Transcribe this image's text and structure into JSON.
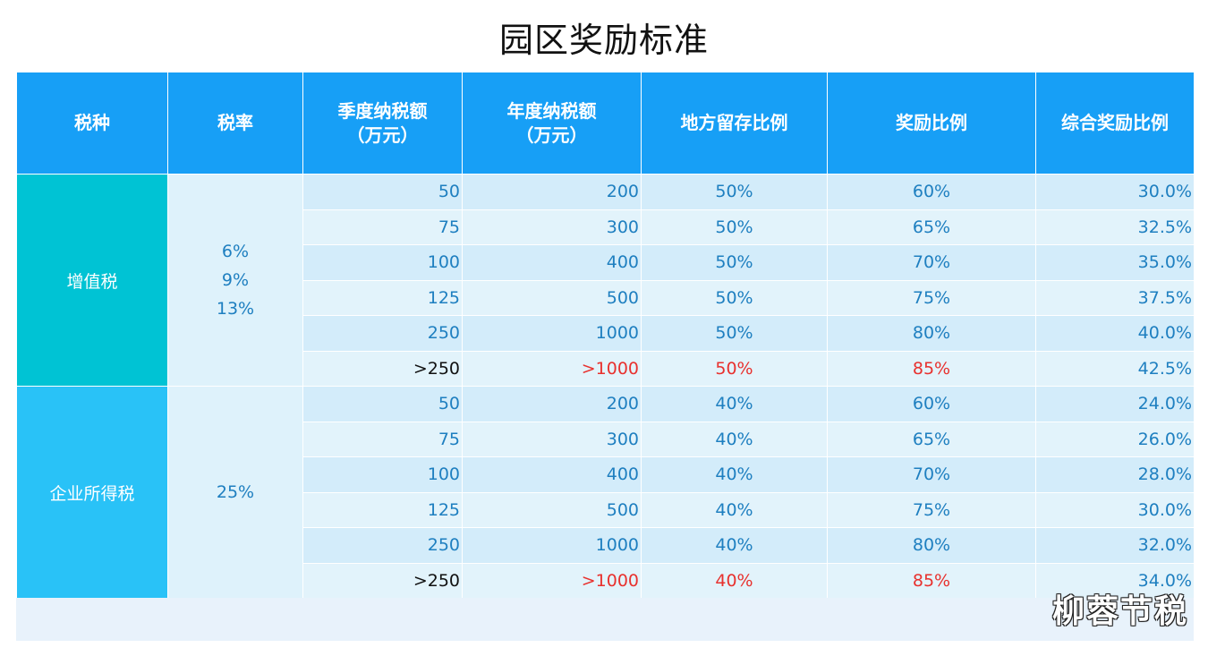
{
  "title": "园区奖励标准",
  "headers": [
    "税种",
    "税率",
    "季度纳税额\n（万元）",
    "年度纳税额\n（万元）",
    "地方留存比例",
    "奖励比例",
    "综合奖励比例"
  ],
  "groups": [
    {
      "type": "增值税",
      "rate": "6%\n9%\n13%",
      "rows": [
        {
          "q": "50",
          "y": "200",
          "local": "50%",
          "reward": "60%",
          "total": "30.0%"
        },
        {
          "q": "75",
          "y": "300",
          "local": "50%",
          "reward": "65%",
          "total": "32.5%"
        },
        {
          "q": "100",
          "y": "400",
          "local": "50%",
          "reward": "70%",
          "total": "35.0%"
        },
        {
          "q": "125",
          "y": "500",
          "local": "50%",
          "reward": "75%",
          "total": "37.5%"
        },
        {
          "q": "250",
          "y": "1000",
          "local": "50%",
          "reward": "80%",
          "total": "40.0%"
        },
        {
          "q": ">250",
          "y": ">1000",
          "local": "50%",
          "reward": "85%",
          "total": "42.5%"
        }
      ]
    },
    {
      "type": "企业所得税",
      "rate": "25%",
      "rows": [
        {
          "q": "50",
          "y": "200",
          "local": "40%",
          "reward": "60%",
          "total": "24.0%"
        },
        {
          "q": "75",
          "y": "300",
          "local": "40%",
          "reward": "65%",
          "total": "26.0%"
        },
        {
          "q": "100",
          "y": "400",
          "local": "40%",
          "reward": "70%",
          "total": "28.0%"
        },
        {
          "q": "125",
          "y": "500",
          "local": "40%",
          "reward": "75%",
          "total": "30.0%"
        },
        {
          "q": "250",
          "y": "1000",
          "local": "40%",
          "reward": "80%",
          "total": "32.0%"
        },
        {
          "q": ">250",
          "y": ">1000",
          "local": "40%",
          "reward": "85%",
          "total": "34.0%"
        }
      ]
    }
  ],
  "watermark": "柳蓉节税",
  "colors": {
    "header_bg": "#179ff6",
    "vat_type_bg": "#00c3d4",
    "cit_type_bg": "#29c2f7",
    "value_text": "#1e7fc0",
    "highlight_red": "#e8312e"
  }
}
